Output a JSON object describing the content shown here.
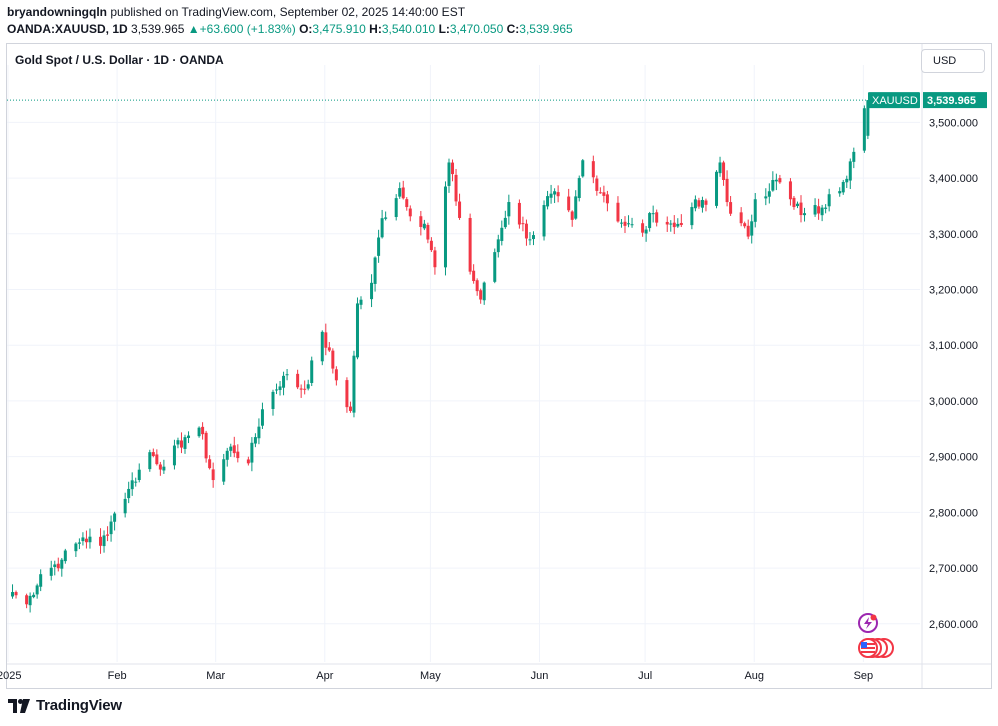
{
  "header": {
    "author": "bryandowningqln",
    "published_text": "published on TradingView.com, September 02, 2025 14:40:00 EST",
    "symbol": "OANDA:XAUUSD, 1D",
    "last": "3,539.965",
    "change_arrow": "▲",
    "change": "+63.600 (+1.83%)",
    "open_label": "O:",
    "open": "3,475.910",
    "high_label": "H:",
    "high": "3,540.010",
    "low_label": "L:",
    "low": "3,470.050",
    "close_label": "C:",
    "close": "3,539.965"
  },
  "legend_title": "Gold Spot / U.S. Dollar · 1D · OANDA",
  "currency_button": "USD",
  "price_tag": {
    "symbol": "XAUUSD",
    "value": "3,539.965"
  },
  "footer": {
    "brand": "TradingView",
    "logo_icon": "tradingview-logo-icon"
  },
  "icons": [
    "lightning-icon",
    "us-flag-stack-icon"
  ],
  "colors": {
    "up": "#089981",
    "down": "#f23645",
    "grid": "#f0f3fa",
    "text": "#131722"
  },
  "chart_data": {
    "type": "candlestick",
    "title": "Gold Spot / U.S. Dollar · 1D · OANDA",
    "y_ticks": [
      "3,500.000",
      "3,400.000",
      "3,300.000",
      "3,200.000",
      "3,100.000",
      "3,000.000",
      "2,900.000",
      "2,800.000",
      "2,700.000",
      "2,600.000"
    ],
    "y_tick_values": [
      3500,
      3400,
      3300,
      3200,
      3100,
      3000,
      2900,
      2800,
      2700,
      2600
    ],
    "x_ticks": [
      "2025",
      "Feb",
      "Mar",
      "Apr",
      "May",
      "Jun",
      "Jul",
      "Aug",
      "Sep"
    ],
    "x_tick_dates": [
      "2025-01-01",
      "2025-02-01",
      "2025-03-01",
      "2025-04-01",
      "2025-05-01",
      "2025-06-01",
      "2025-07-01",
      "2025-08-01",
      "2025-09-01"
    ],
    "y_range": [
      2535,
      3585
    ],
    "last_price": 3539.965,
    "grid": true,
    "close_anchors": [
      [
        "2025-01-02",
        2657
      ],
      [
        "2025-01-06",
        2635
      ],
      [
        "2025-01-10",
        2689
      ],
      [
        "2025-01-16",
        2715
      ],
      [
        "2025-01-22",
        2755
      ],
      [
        "2025-01-27",
        2740
      ],
      [
        "2025-01-31",
        2798
      ],
      [
        "2025-02-04",
        2842
      ],
      [
        "2025-02-10",
        2908
      ],
      [
        "2025-02-14",
        2882
      ],
      [
        "2025-02-20",
        2935
      ],
      [
        "2025-02-24",
        2952
      ],
      [
        "2025-02-28",
        2858
      ],
      [
        "2025-03-05",
        2918
      ],
      [
        "2025-03-10",
        2888
      ],
      [
        "2025-03-14",
        2985
      ],
      [
        "2025-03-20",
        3045
      ],
      [
        "2025-03-26",
        3020
      ],
      [
        "2025-03-31",
        3124
      ],
      [
        "2025-04-04",
        3037
      ],
      [
        "2025-04-08",
        2982
      ],
      [
        "2025-04-10",
        3175
      ],
      [
        "2025-04-14",
        3212
      ],
      [
        "2025-04-17",
        3328
      ],
      [
        "2025-04-22",
        3382
      ],
      [
        "2025-04-24",
        3348
      ],
      [
        "2025-04-29",
        3318
      ],
      [
        "2025-05-02",
        3240
      ],
      [
        "2025-05-06",
        3428
      ],
      [
        "2025-05-12",
        3232
      ],
      [
        "2025-05-15",
        3182
      ],
      [
        "2025-05-20",
        3290
      ],
      [
        "2025-05-23",
        3357
      ],
      [
        "2025-05-29",
        3290
      ],
      [
        "2025-06-04",
        3372
      ],
      [
        "2025-06-10",
        3325
      ],
      [
        "2025-06-13",
        3432
      ],
      [
        "2025-06-19",
        3368
      ],
      [
        "2025-06-24",
        3320
      ],
      [
        "2025-06-30",
        3302
      ],
      [
        "2025-07-03",
        3337
      ],
      [
        "2025-07-09",
        3312
      ],
      [
        "2025-07-14",
        3348
      ],
      [
        "2025-07-18",
        3352
      ],
      [
        "2025-07-22",
        3428
      ],
      [
        "2025-07-25",
        3336
      ],
      [
        "2025-07-30",
        3295
      ],
      [
        "2025-08-01",
        3362
      ],
      [
        "2025-08-07",
        3397
      ],
      [
        "2025-08-12",
        3348
      ],
      [
        "2025-08-15",
        3337
      ],
      [
        "2025-08-20",
        3347
      ],
      [
        "2025-08-22",
        3371
      ],
      [
        "2025-08-26",
        3393
      ],
      [
        "2025-08-29",
        3447
      ],
      [
        "2025-09-02",
        3539.965
      ]
    ]
  }
}
